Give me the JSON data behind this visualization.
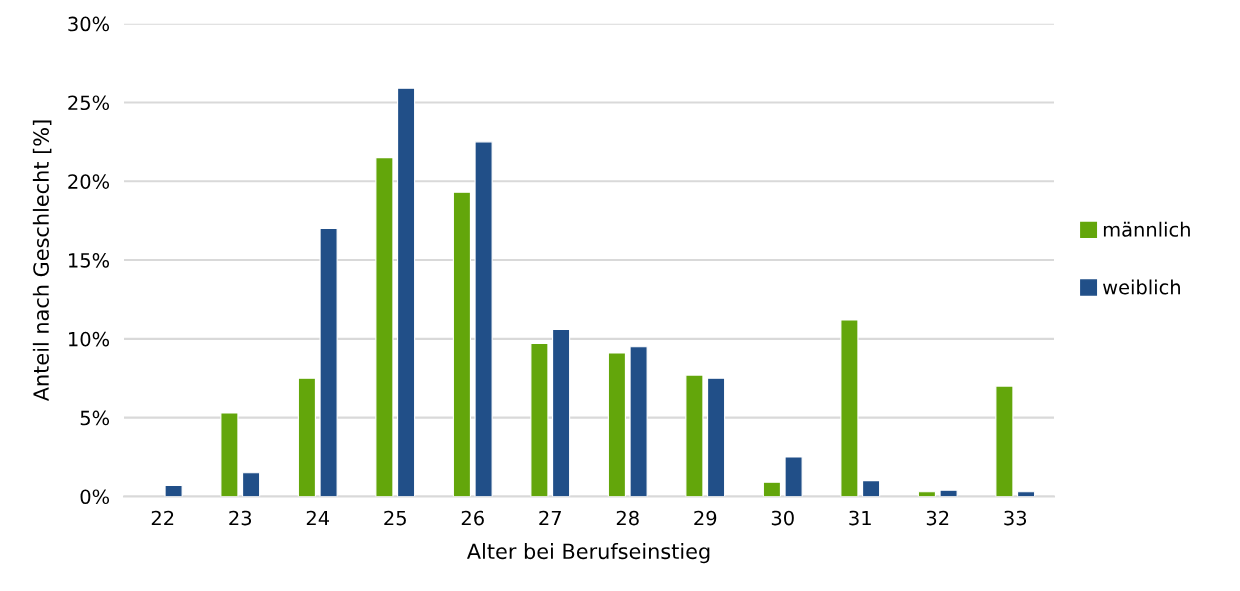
{
  "chart_data": {
    "type": "bar",
    "xlabel": "Alter bei Berufseinstieg",
    "ylabel": "Anteil nach Geschlecht [%]",
    "categories": [
      "22",
      "23",
      "24",
      "25",
      "26",
      "27",
      "28",
      "29",
      "30",
      "31",
      "32",
      "33"
    ],
    "series": [
      {
        "name": "männlich",
        "color": "#63a60b",
        "values": [
          null,
          5.3,
          7.5,
          21.5,
          19.3,
          9.7,
          9.1,
          7.7,
          0.9,
          11.2,
          0.3,
          7.0
        ]
      },
      {
        "name": "weiblich",
        "color": "#214f88",
        "values": [
          0.7,
          1.5,
          17.0,
          25.9,
          22.5,
          10.6,
          9.5,
          7.5,
          2.5,
          1.0,
          0.4,
          0.3
        ]
      }
    ],
    "ylim": [
      0,
      30
    ],
    "yticks": [
      {
        "value": 0,
        "label": "0%"
      },
      {
        "value": 5,
        "label": "5%"
      },
      {
        "value": 10,
        "label": "10%"
      },
      {
        "value": 15,
        "label": "15%"
      },
      {
        "value": 20,
        "label": "20%"
      },
      {
        "value": 25,
        "label": "25%"
      },
      {
        "value": 30,
        "label": "30%"
      }
    ],
    "grid": "y",
    "legend": "right"
  }
}
